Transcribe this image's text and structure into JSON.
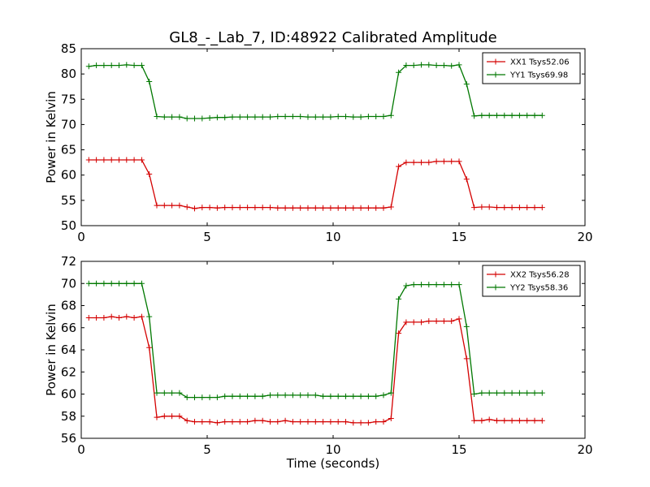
{
  "colors": {
    "xx": "#d40000",
    "yy": "#007800"
  },
  "chart_data": [
    {
      "type": "line",
      "title": "GL8_-_Lab_7, ID:48922 Calibrated Amplitude",
      "xlabel": "",
      "ylabel": "Power in Kelvin",
      "xlim": [
        0,
        20
      ],
      "ylim": [
        50,
        85
      ],
      "xticks": [
        0,
        5,
        10,
        15,
        20
      ],
      "yticks": [
        50,
        55,
        60,
        65,
        70,
        75,
        80,
        85
      ],
      "grid": false,
      "legend_position": "top-right",
      "x": [
        0.3,
        0.6,
        0.9,
        1.2,
        1.5,
        1.8,
        2.1,
        2.4,
        2.7,
        3.0,
        3.3,
        3.6,
        3.9,
        4.2,
        4.5,
        4.8,
        5.1,
        5.4,
        5.7,
        6.0,
        6.3,
        6.6,
        6.9,
        7.2,
        7.5,
        7.8,
        8.1,
        8.4,
        8.7,
        9.0,
        9.3,
        9.6,
        9.9,
        10.2,
        10.5,
        10.8,
        11.1,
        11.4,
        11.7,
        12.0,
        12.3,
        12.6,
        12.9,
        13.2,
        13.5,
        13.8,
        14.1,
        14.4,
        14.7,
        15.0,
        15.3,
        15.6,
        15.9,
        16.2,
        16.5,
        16.8,
        17.1,
        17.4,
        17.7,
        18.0,
        18.3
      ],
      "series": [
        {
          "name": "XX1 Tsys52.06",
          "color": "#d40000",
          "values": [
            63.0,
            63.0,
            63.0,
            63.0,
            63.0,
            63.0,
            63.0,
            63.0,
            60.2,
            54.0,
            54.0,
            54.0,
            54.0,
            53.7,
            53.4,
            53.6,
            53.6,
            53.5,
            53.6,
            53.6,
            53.6,
            53.6,
            53.6,
            53.6,
            53.6,
            53.5,
            53.5,
            53.5,
            53.5,
            53.5,
            53.5,
            53.5,
            53.5,
            53.5,
            53.5,
            53.5,
            53.5,
            53.5,
            53.5,
            53.5,
            53.7,
            61.7,
            62.5,
            62.5,
            62.5,
            62.5,
            62.7,
            62.7,
            62.7,
            62.7,
            59.2,
            53.6,
            53.7,
            53.7,
            53.6,
            53.6,
            53.6,
            53.6,
            53.6,
            53.6,
            53.6
          ]
        },
        {
          "name": "YY1 Tsys69.98",
          "color": "#007800",
          "values": [
            81.5,
            81.7,
            81.7,
            81.7,
            81.7,
            81.8,
            81.7,
            81.7,
            78.5,
            71.6,
            71.5,
            71.5,
            71.5,
            71.2,
            71.2,
            71.2,
            71.3,
            71.4,
            71.4,
            71.5,
            71.5,
            71.5,
            71.5,
            71.5,
            71.5,
            71.6,
            71.6,
            71.6,
            71.6,
            71.5,
            71.5,
            71.5,
            71.5,
            71.6,
            71.6,
            71.5,
            71.5,
            71.6,
            71.6,
            71.6,
            71.8,
            80.3,
            81.7,
            81.7,
            81.8,
            81.8,
            81.7,
            81.7,
            81.6,
            81.8,
            78.0,
            71.7,
            71.8,
            71.8,
            71.8,
            71.8,
            71.8,
            71.8,
            71.8,
            71.8,
            71.8
          ]
        }
      ]
    },
    {
      "type": "line",
      "title": "",
      "xlabel": "Time (seconds)",
      "ylabel": "Power in Kelvin",
      "xlim": [
        0,
        20
      ],
      "ylim": [
        56,
        72
      ],
      "xticks": [
        0,
        5,
        10,
        15,
        20
      ],
      "yticks": [
        56,
        58,
        60,
        62,
        64,
        66,
        68,
        70,
        72
      ],
      "grid": false,
      "legend_position": "top-right",
      "x": [
        0.3,
        0.6,
        0.9,
        1.2,
        1.5,
        1.8,
        2.1,
        2.4,
        2.7,
        3.0,
        3.3,
        3.6,
        3.9,
        4.2,
        4.5,
        4.8,
        5.1,
        5.4,
        5.7,
        6.0,
        6.3,
        6.6,
        6.9,
        7.2,
        7.5,
        7.8,
        8.1,
        8.4,
        8.7,
        9.0,
        9.3,
        9.6,
        9.9,
        10.2,
        10.5,
        10.8,
        11.1,
        11.4,
        11.7,
        12.0,
        12.3,
        12.6,
        12.9,
        13.2,
        13.5,
        13.8,
        14.1,
        14.4,
        14.7,
        15.0,
        15.3,
        15.6,
        15.9,
        16.2,
        16.5,
        16.8,
        17.1,
        17.4,
        17.7,
        18.0,
        18.3
      ],
      "series": [
        {
          "name": "XX2 Tsys56.28",
          "color": "#d40000",
          "values": [
            66.9,
            66.9,
            66.9,
            67.0,
            66.9,
            67.0,
            66.9,
            67.0,
            64.2,
            57.9,
            58.0,
            58.0,
            58.0,
            57.6,
            57.5,
            57.5,
            57.5,
            57.4,
            57.5,
            57.5,
            57.5,
            57.5,
            57.6,
            57.6,
            57.5,
            57.5,
            57.6,
            57.5,
            57.5,
            57.5,
            57.5,
            57.5,
            57.5,
            57.5,
            57.5,
            57.4,
            57.4,
            57.4,
            57.5,
            57.5,
            57.8,
            65.5,
            66.5,
            66.5,
            66.5,
            66.6,
            66.6,
            66.6,
            66.6,
            66.8,
            63.2,
            57.6,
            57.6,
            57.7,
            57.6,
            57.6,
            57.6,
            57.6,
            57.6,
            57.6,
            57.6
          ]
        },
        {
          "name": "YY2 Tsys58.36",
          "color": "#007800",
          "values": [
            70.0,
            70.0,
            70.0,
            70.0,
            70.0,
            70.0,
            70.0,
            70.0,
            67.0,
            60.1,
            60.1,
            60.1,
            60.1,
            59.7,
            59.7,
            59.7,
            59.7,
            59.7,
            59.8,
            59.8,
            59.8,
            59.8,
            59.8,
            59.8,
            59.9,
            59.9,
            59.9,
            59.9,
            59.9,
            59.9,
            59.9,
            59.8,
            59.8,
            59.8,
            59.8,
            59.8,
            59.8,
            59.8,
            59.8,
            59.9,
            60.1,
            68.6,
            69.8,
            69.9,
            69.9,
            69.9,
            69.9,
            69.9,
            69.9,
            69.9,
            66.1,
            60.0,
            60.1,
            60.1,
            60.1,
            60.1,
            60.1,
            60.1,
            60.1,
            60.1,
            60.1
          ]
        }
      ]
    }
  ]
}
